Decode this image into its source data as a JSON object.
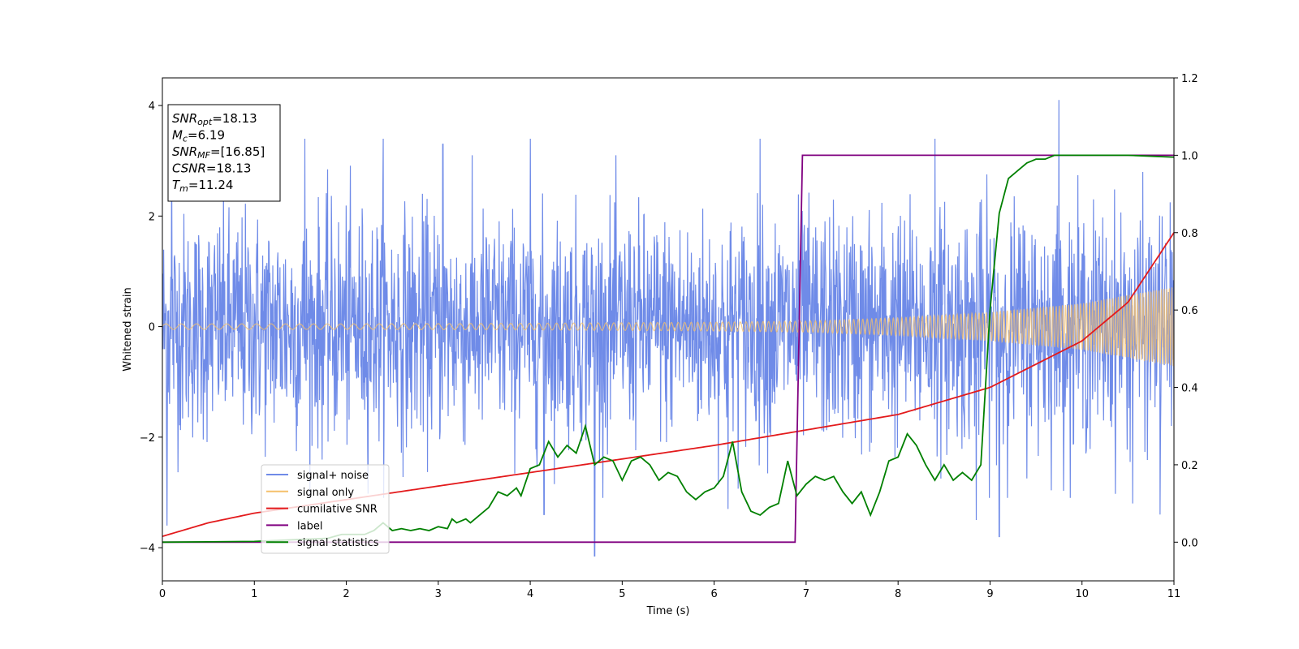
{
  "chart_data": {
    "type": "line",
    "title": "",
    "xlabel": "Time (s)",
    "ylabel": "Whitened strain",
    "y2label": "",
    "xlim": [
      0,
      11
    ],
    "ylim": [
      -4.6,
      4.5
    ],
    "y2lim": [
      -0.1,
      1.2
    ],
    "x_ticks": [
      "0",
      "1",
      "2",
      "3",
      "4",
      "5",
      "6",
      "7",
      "8",
      "9",
      "10",
      "11"
    ],
    "y_ticks": [
      "−4",
      "−2",
      "0",
      "2",
      "4"
    ],
    "y2_ticks": [
      "0.0",
      "0.2",
      "0.4",
      "0.6",
      "0.8",
      "1.0",
      "1.2"
    ],
    "grid": false,
    "legend_position": "lower-left",
    "annotation": {
      "lines": [
        {
          "base": "SNR",
          "sub": "opt",
          "rest": "=18.13"
        },
        {
          "base": "M",
          "sub": "c",
          "rest": "=6.19"
        },
        {
          "base": "SNR",
          "sub": "MF",
          "rest": "=[16.85]"
        },
        {
          "base": "CSNR",
          "sub": "",
          "rest": "=18.13"
        },
        {
          "base": "T",
          "sub": "m",
          "rest": "=11.24"
        }
      ]
    },
    "series": [
      {
        "name": "signal+ noise",
        "color": "#6f8be8",
        "axis": "left",
        "description": "whitened strain noise, amplitude roughly ±2 with spikes up to 4.1 and down to -4.1",
        "envelope_x": [
          0,
          2,
          4,
          6,
          8,
          10,
          11
        ],
        "envelope_typical": [
          2.0,
          2.1,
          2.0,
          2.0,
          2.1,
          2.1,
          2.0
        ],
        "spikes": [
          {
            "x": 0.1,
            "y": 3.3
          },
          {
            "x": 1.55,
            "y": 3.4
          },
          {
            "x": 2.4,
            "y": 3.4
          },
          {
            "x": 3.05,
            "y": 3.3
          },
          {
            "x": 4.0,
            "y": 3.4
          },
          {
            "x": 6.5,
            "y": 3.4
          },
          {
            "x": 9.75,
            "y": 4.1
          },
          {
            "x": 8.4,
            "y": 3.4
          },
          {
            "x": 4.7,
            "y": -4.15
          },
          {
            "x": 0.05,
            "y": -3.6
          },
          {
            "x": 4.15,
            "y": -3.4
          },
          {
            "x": 8.85,
            "y": -3.5
          },
          {
            "x": 9.1,
            "y": -3.8
          },
          {
            "x": 10.55,
            "y": -3.2
          },
          {
            "x": 10.85,
            "y": -3.4
          },
          {
            "x": 6.15,
            "y": -3.3
          }
        ]
      },
      {
        "name": "signal only",
        "color": "#f5c06b",
        "axis": "left",
        "description": "chirp signal with growing amplitude",
        "amplitude_x": [
          0,
          2,
          4,
          6,
          7,
          8,
          9,
          10,
          11
        ],
        "amplitude": [
          0.05,
          0.05,
          0.06,
          0.08,
          0.1,
          0.16,
          0.26,
          0.42,
          0.72
        ]
      },
      {
        "name": "cumilative SNR",
        "color": "#e31a1c",
        "axis": "right",
        "x": [
          0,
          0.5,
          1,
          2,
          3,
          4,
          5,
          6,
          7,
          8,
          9,
          10,
          10.5,
          11
        ],
        "y": [
          0.015,
          0.05,
          0.075,
          0.11,
          0.145,
          0.18,
          0.215,
          0.25,
          0.29,
          0.33,
          0.4,
          0.52,
          0.62,
          0.8
        ]
      },
      {
        "name": "label",
        "color": "#800080",
        "axis": "right",
        "x": [
          0,
          6.88,
          6.96,
          11
        ],
        "y": [
          0,
          0,
          1,
          1
        ]
      },
      {
        "name": "signal statistics",
        "color": "#008000",
        "axis": "right",
        "x": [
          0,
          1.0,
          1.8,
          1.95,
          2.2,
          2.3,
          2.4,
          2.5,
          2.6,
          2.7,
          2.8,
          2.9,
          3.0,
          3.1,
          3.15,
          3.2,
          3.3,
          3.35,
          3.45,
          3.55,
          3.65,
          3.75,
          3.85,
          3.9,
          4.0,
          4.1,
          4.2,
          4.3,
          4.4,
          4.5,
          4.6,
          4.7,
          4.8,
          4.9,
          5.0,
          5.1,
          5.2,
          5.3,
          5.4,
          5.5,
          5.6,
          5.7,
          5.8,
          5.9,
          6.0,
          6.1,
          6.2,
          6.3,
          6.4,
          6.5,
          6.6,
          6.7,
          6.8,
          6.9,
          7.0,
          7.1,
          7.2,
          7.3,
          7.4,
          7.5,
          7.6,
          7.7,
          7.8,
          7.9,
          8.0,
          8.1,
          8.2,
          8.3,
          8.4,
          8.5,
          8.6,
          8.7,
          8.8,
          8.9,
          9.0,
          9.1,
          9.2,
          9.3,
          9.4,
          9.5,
          9.6,
          9.7,
          9.8,
          9.9,
          10.0,
          10.5,
          11.0
        ],
        "y": [
          0.0,
          0.002,
          0.01,
          0.02,
          0.02,
          0.03,
          0.05,
          0.03,
          0.035,
          0.03,
          0.035,
          0.03,
          0.04,
          0.035,
          0.06,
          0.05,
          0.06,
          0.05,
          0.07,
          0.09,
          0.13,
          0.12,
          0.14,
          0.12,
          0.19,
          0.2,
          0.26,
          0.22,
          0.25,
          0.23,
          0.3,
          0.2,
          0.22,
          0.21,
          0.16,
          0.21,
          0.22,
          0.2,
          0.16,
          0.18,
          0.17,
          0.13,
          0.11,
          0.13,
          0.14,
          0.17,
          0.26,
          0.13,
          0.08,
          0.07,
          0.09,
          0.1,
          0.21,
          0.12,
          0.15,
          0.17,
          0.16,
          0.17,
          0.13,
          0.1,
          0.13,
          0.07,
          0.13,
          0.21,
          0.22,
          0.28,
          0.25,
          0.2,
          0.16,
          0.2,
          0.16,
          0.18,
          0.16,
          0.2,
          0.6,
          0.85,
          0.94,
          0.96,
          0.98,
          0.99,
          0.99,
          1.0,
          1.0,
          1.0,
          1.0,
          1.0,
          0.995
        ]
      }
    ]
  }
}
